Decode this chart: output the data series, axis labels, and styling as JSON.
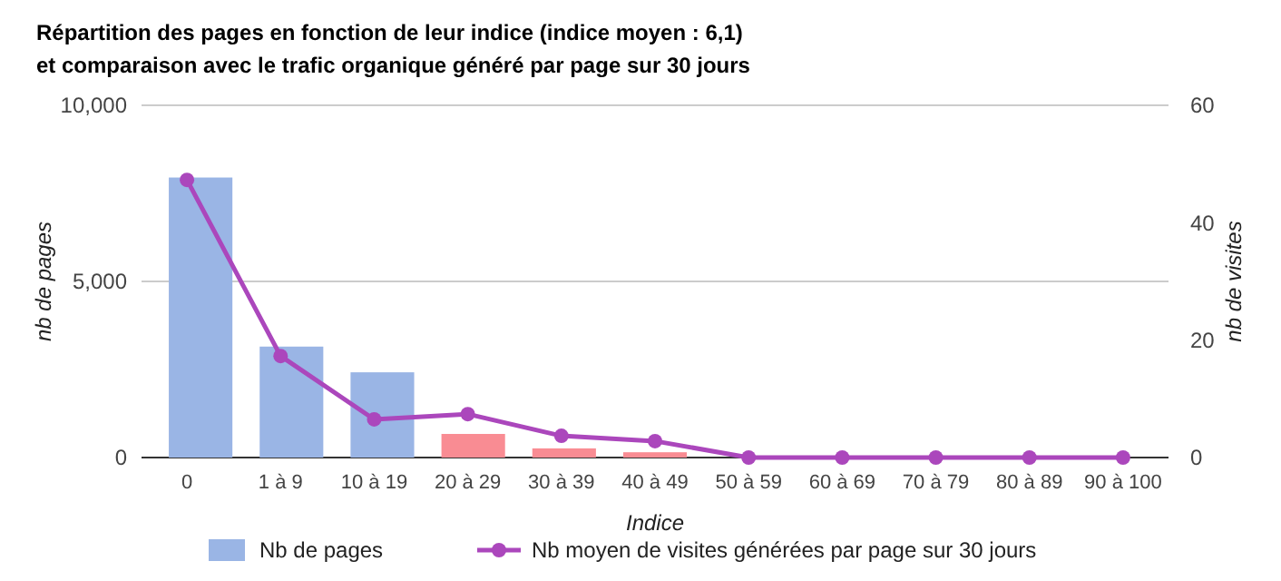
{
  "chart_data": {
    "type": "bar",
    "title": "Répartition des pages en fonction de leur indice (indice moyen : 6,1)",
    "subtitle": "et comparaison avec le trafic organique généré par page sur 30 jours",
    "xlabel": "Indice",
    "ylabel": "nb de pages",
    "y2label": "nb de visites",
    "categories": [
      "0",
      "1 à 9",
      "10 à 19",
      "20 à 29",
      "30 à 39",
      "40 à 49",
      "50 à 59",
      "60 à 69",
      "70 à 79",
      "80 à 89",
      "90 à 100"
    ],
    "series": [
      {
        "name": "Nb de pages",
        "color": "#9ab5e5",
        "colors": [
          "#9ab5e5",
          "#9ab5e5",
          "#9ab5e5",
          "#f98c93",
          "#f98c93",
          "#f98c93",
          "#9ab5e5",
          "#9ab5e5",
          "#9ab5e5",
          "#9ab5e5",
          "#9ab5e5"
        ],
        "values": [
          7950,
          3150,
          2420,
          670,
          260,
          150,
          0,
          0,
          0,
          0,
          0
        ]
      },
      {
        "name": "Nb moyen de visites générées par page sur 30 jours",
        "type": "line",
        "axis": "y2",
        "color": "#ab47bc",
        "marker": "circle",
        "values": [
          47.3,
          17.3,
          6.5,
          7.4,
          3.7,
          2.8,
          0,
          0,
          0,
          0,
          0
        ]
      }
    ],
    "ylim": [
      0,
      10000
    ],
    "yticks": [
      0,
      {
        "value": 5000,
        "label": "5,000"
      },
      {
        "value": 10000,
        "label": "10,000"
      }
    ],
    "y2lim": [
      0,
      60
    ],
    "y2ticks": [
      0,
      20,
      40,
      60
    ],
    "grid": "y",
    "legend": "bottom"
  }
}
